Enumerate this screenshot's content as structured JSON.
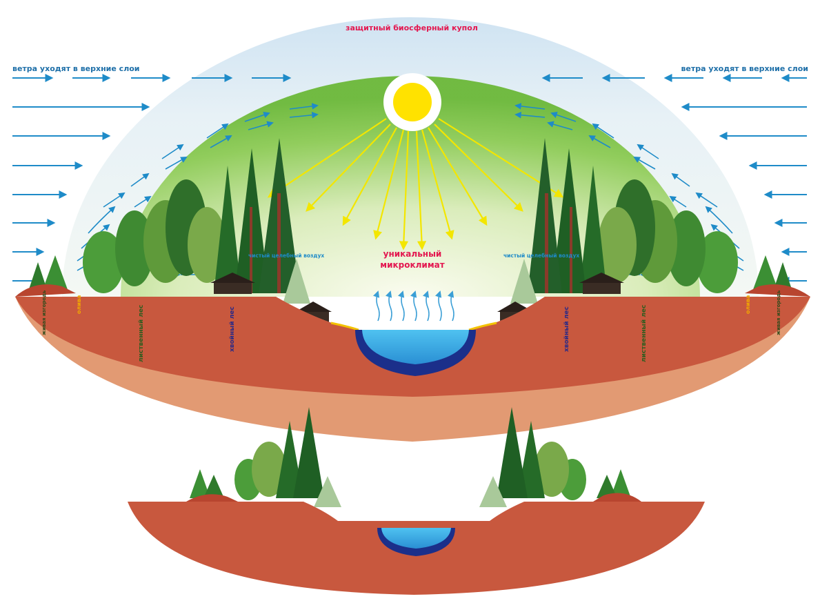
{
  "labels": {
    "dome": "защитный биосферный купол",
    "winds_left": "ветра уходят в верхние слои",
    "winds_right": "ветра уходят в верхние слои",
    "microclimate_line1": "уникальный",
    "microclimate_line2": "микроклимат",
    "clean_air_left": "чистый целебный воздух",
    "clean_air_right": "чистый целебный воздух",
    "hedge_left": "живая изгородь",
    "hedge_right": "живая изгородь",
    "olive_left": "олива",
    "olive_right": "олива",
    "deciduous_left": "лиственный лес",
    "deciduous_right": "лиственный лес",
    "conifer_left": "хвойный лес",
    "conifer_right": "хвойный лес"
  },
  "colors": {
    "dome_top": "#cfe3f2",
    "dome_green": "#7fc24a",
    "sun": "#ffe200",
    "ray": "#f3e600",
    "wind": "#1e8bc8",
    "soil_dark": "#c8583e",
    "soil_light": "#e29a73",
    "water": "#3aa9e3",
    "water_deep": "#1b2f8a",
    "dome_label": "#e3174f",
    "micro_label": "#e3174f",
    "hedge_label": "#2e4b1b",
    "olive_label": "#f2a900",
    "deciduous_label": "#2e5d1f",
    "conifer_label": "#2b2a86"
  }
}
